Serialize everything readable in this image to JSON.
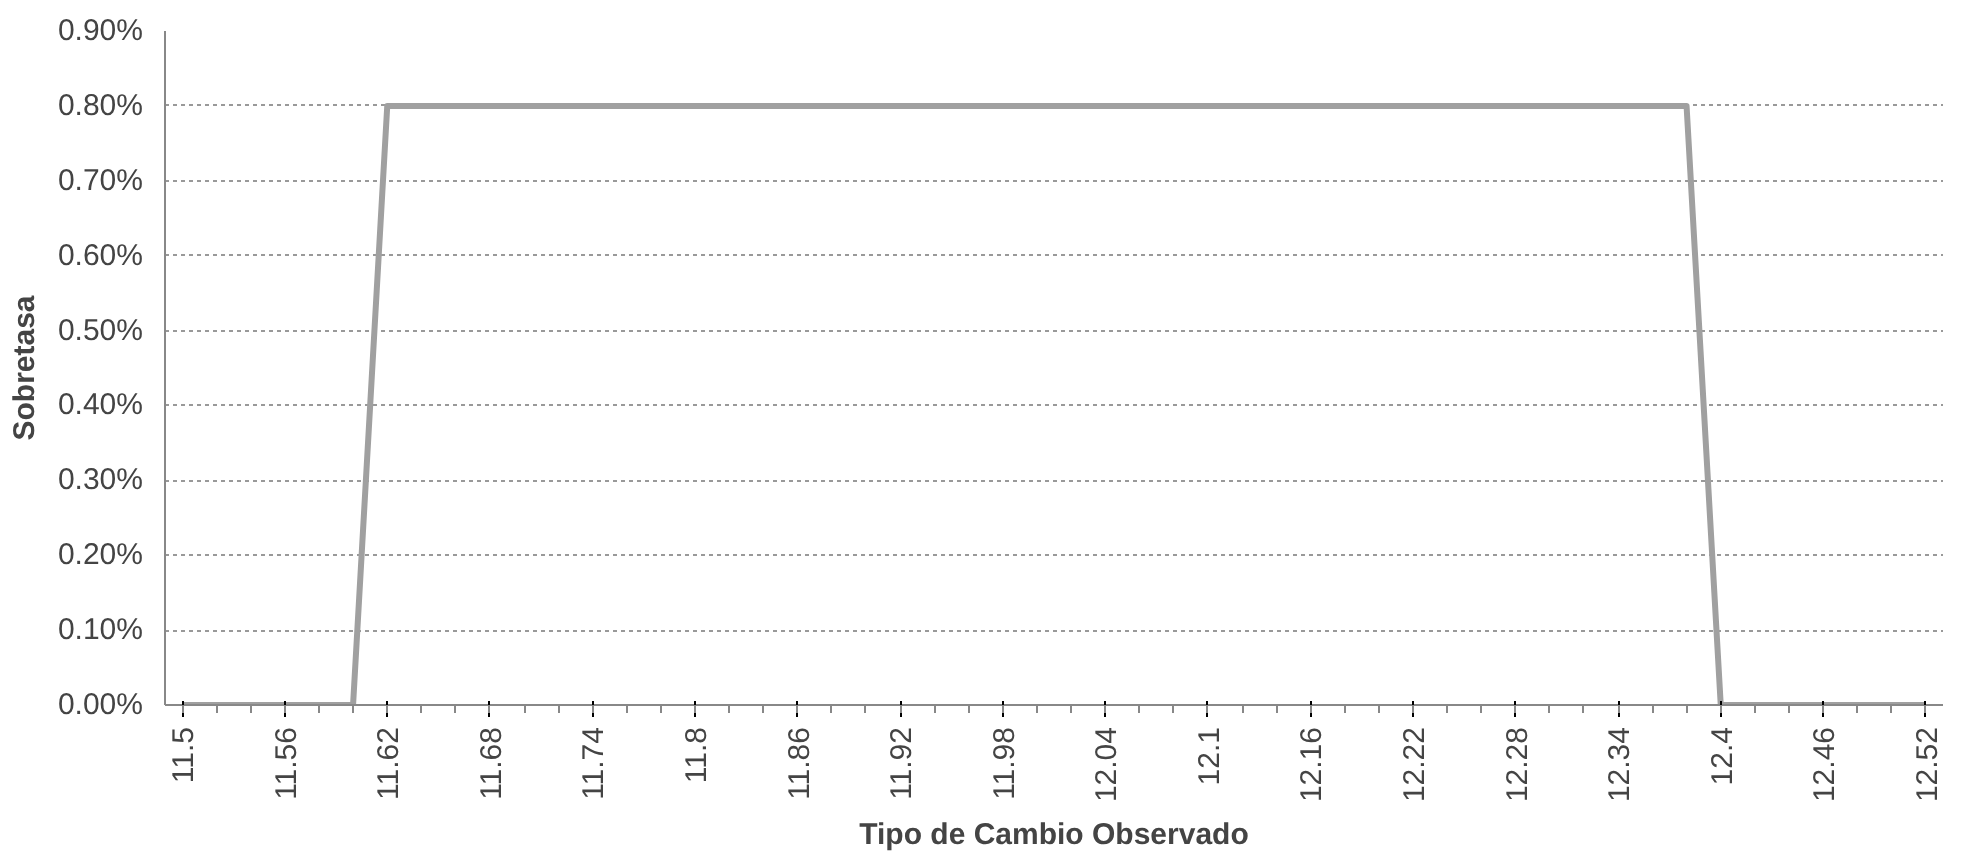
{
  "chart_data": {
    "type": "line",
    "xlabel": "Tipo de Cambio Observado",
    "ylabel": "Sobretasa",
    "categories": [
      "11.5",
      null,
      null,
      "11.56",
      null,
      null,
      "11.62",
      null,
      null,
      "11.68",
      null,
      null,
      "11.74",
      null,
      null,
      "11.8",
      null,
      null,
      "11.86",
      null,
      null,
      "11.92",
      null,
      null,
      "11.98",
      null,
      null,
      "12.04",
      null,
      null,
      "12.1",
      null,
      null,
      "12.16",
      null,
      null,
      "12.22",
      null,
      null,
      "12.28",
      null,
      null,
      "12.34",
      null,
      null,
      "12.4",
      null,
      null,
      "12.46",
      null,
      null,
      "12.52"
    ],
    "series": [
      {
        "color": "#a0a0a0",
        "values": [
          0,
          0,
          0,
          0,
          0,
          0,
          0.8,
          0.8,
          0.8,
          0.8,
          0.8,
          0.8,
          0.8,
          0.8,
          0.8,
          0.8,
          0.8,
          0.8,
          0.8,
          0.8,
          0.8,
          0.8,
          0.8,
          0.8,
          0.8,
          0.8,
          0.8,
          0.8,
          0.8,
          0.8,
          0.8,
          0.8,
          0.8,
          0.8,
          0.8,
          0.8,
          0.8,
          0.8,
          0.8,
          0.8,
          0.8,
          0.8,
          0.8,
          0.8,
          0.8,
          0,
          0,
          0,
          0,
          0,
          0,
          0
        ]
      }
    ],
    "ylim": [
      0,
      0.9
    ],
    "yticks": [
      {
        "value": 0,
        "label": "0.00%"
      },
      {
        "value": 0.1,
        "label": "0.10%"
      },
      {
        "value": 0.2,
        "label": "0.20%"
      },
      {
        "value": 0.3,
        "label": "0.30%"
      },
      {
        "value": 0.4,
        "label": "0.40%"
      },
      {
        "value": 0.5,
        "label": "0.50%"
      },
      {
        "value": 0.6,
        "label": "0.60%"
      },
      {
        "value": 0.7,
        "label": "0.70%"
      },
      {
        "value": 0.8,
        "label": "0.80%"
      },
      {
        "value": 0.9,
        "label": "0.90%"
      }
    ],
    "grid": "y",
    "marker": "none",
    "line_style": "solid"
  }
}
